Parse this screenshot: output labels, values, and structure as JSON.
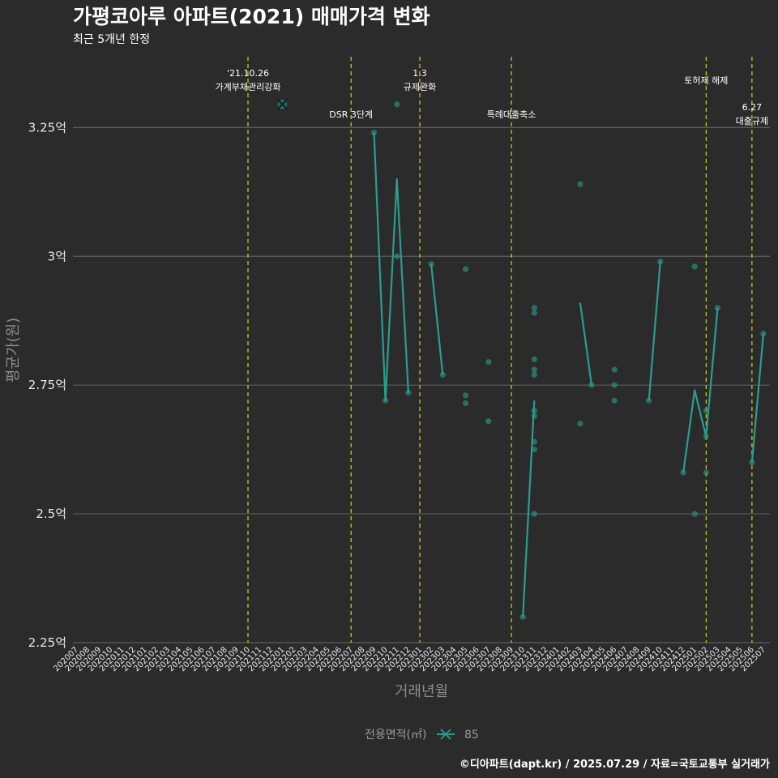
{
  "chart_data": {
    "type": "line",
    "title": "가평코아루 아파트(2021) 매매가격 변화",
    "subtitle": "최근 5개년 한정",
    "xlabel": "거래년월",
    "ylabel": "평균가(원)",
    "ylim": [
      2.25,
      3.4
    ],
    "yticks": [
      {
        "value": 2.25,
        "label": "2.25억"
      },
      {
        "value": 2.5,
        "label": "2.5억"
      },
      {
        "value": 2.75,
        "label": "2.75억"
      },
      {
        "value": 3.0,
        "label": "3억"
      },
      {
        "value": 3.25,
        "label": "3.25억"
      }
    ],
    "categories": [
      "202007",
      "202008",
      "202009",
      "202010",
      "202011",
      "202012",
      "202101",
      "202102",
      "202103",
      "202104",
      "202105",
      "202106",
      "202107",
      "202108",
      "202109",
      "202110",
      "202111",
      "202112",
      "202201",
      "202202",
      "202203",
      "202204",
      "202205",
      "202206",
      "202207",
      "202208",
      "202209",
      "202210",
      "202211",
      "202212",
      "202301",
      "202302",
      "202303",
      "202304",
      "202305",
      "202306",
      "202307",
      "202308",
      "202309",
      "202310",
      "202311",
      "202312",
      "202401",
      "202402",
      "202403",
      "202404",
      "202405",
      "202406",
      "202407",
      "202408",
      "202409",
      "202410",
      "202411",
      "202412",
      "202501",
      "202502",
      "202503",
      "202504",
      "202505",
      "202506",
      "202507"
    ],
    "events": [
      {
        "x": 15,
        "lines": [
          "'21.10.26",
          "가계부채관리강화"
        ],
        "level": "high"
      },
      {
        "x": 24,
        "lines": [
          "DSR 3단계"
        ],
        "level": "low"
      },
      {
        "x": 30,
        "lines": [
          "1.3",
          "규제완화"
        ],
        "level": "high"
      },
      {
        "x": 38,
        "lines": [
          "특례대출축소"
        ],
        "level": "low"
      },
      {
        "x": 55,
        "lines": [
          "토허제 해제"
        ],
        "level": "mid"
      },
      {
        "x": 59,
        "lines": [
          "6.27",
          "대출규제"
        ],
        "level": "lowest"
      }
    ],
    "series": [
      {
        "name": "85",
        "color": "#2a9d8f",
        "line_segments": [
          [
            [
              26,
              3.24
            ],
            [
              27,
              2.72
            ],
            [
              28,
              3.15
            ],
            [
              29,
              2.735
            ]
          ],
          [
            [
              31,
              2.985
            ],
            [
              32,
              2.77
            ]
          ],
          [
            [
              39,
              2.3
            ],
            [
              40,
              2.72
            ]
          ],
          [
            [
              44,
              2.91
            ],
            [
              45,
              2.75
            ]
          ],
          [
            [
              50,
              2.72
            ],
            [
              51,
              2.99
            ]
          ],
          [
            [
              53,
              2.58
            ],
            [
              54,
              2.74
            ],
            [
              55,
              2.65
            ],
            [
              56,
              2.9
            ]
          ],
          [
            [
              59,
              2.6
            ],
            [
              60,
              2.85
            ]
          ]
        ],
        "points": [
          [
            26,
            3.24
          ],
          [
            27,
            2.72
          ],
          [
            28,
            3.295
          ],
          [
            28,
            3.0
          ],
          [
            29,
            2.735
          ],
          [
            31,
            2.985
          ],
          [
            32,
            2.77
          ],
          [
            34,
            2.975
          ],
          [
            34,
            2.73
          ],
          [
            34,
            2.715
          ],
          [
            36,
            2.795
          ],
          [
            36,
            2.68
          ],
          [
            39,
            2.3
          ],
          [
            40,
            2.9
          ],
          [
            40,
            2.89
          ],
          [
            40,
            2.8
          ],
          [
            40,
            2.78
          ],
          [
            40,
            2.77
          ],
          [
            40,
            2.7
          ],
          [
            40,
            2.69
          ],
          [
            40,
            2.64
          ],
          [
            40,
            2.625
          ],
          [
            40,
            2.5
          ],
          [
            44,
            3.14
          ],
          [
            44,
            2.675
          ],
          [
            45,
            2.75
          ],
          [
            47,
            2.78
          ],
          [
            47,
            2.75
          ],
          [
            47,
            2.72
          ],
          [
            50,
            2.72
          ],
          [
            51,
            2.99
          ],
          [
            53,
            2.58
          ],
          [
            54,
            2.98
          ],
          [
            54,
            2.5
          ],
          [
            55,
            2.7
          ],
          [
            55,
            2.58
          ],
          [
            55,
            2.65
          ],
          [
            56,
            2.9
          ],
          [
            59,
            2.6
          ],
          [
            60,
            2.85
          ]
        ],
        "cross_marker": [
          18,
          3.295
        ]
      }
    ],
    "legend": {
      "title": "전용면적(㎡)",
      "entries": [
        "85"
      ],
      "position": "bottom"
    },
    "caption": "©디아파트(dapt.kr) / 2025.07.29 / 자료=국토교통부 실거래가"
  }
}
